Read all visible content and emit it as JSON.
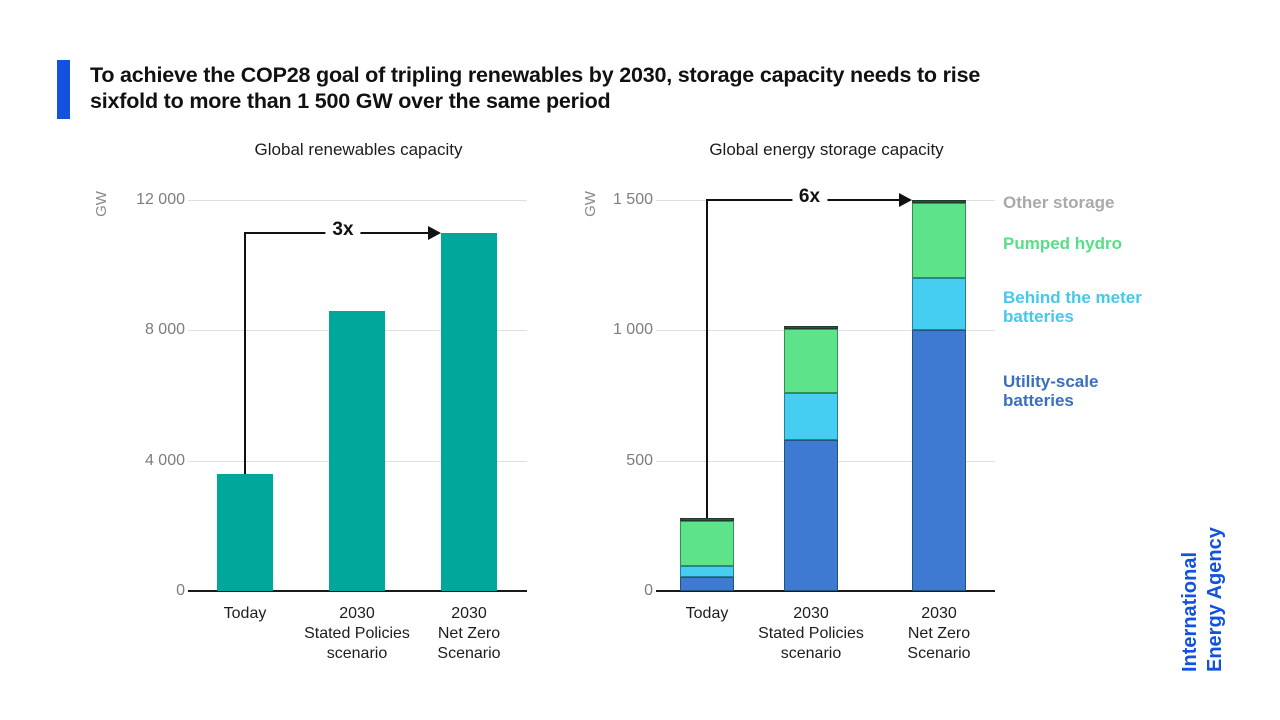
{
  "header": {
    "title_line1": "To achieve the COP28 goal of tripling renewables by 2030, storage capacity needs to rise",
    "title_line2": "sixfold to more than 1 500 GW over the same period",
    "accent_color": "#1352e0"
  },
  "chart_data": [
    {
      "type": "bar",
      "title": "Global renewables capacity",
      "ylabel": "GW",
      "xlabel": "",
      "categories": [
        "Today",
        "2030 Stated Policies scenario",
        "2030 Net Zero Scenario"
      ],
      "category_lines": [
        [
          "Today"
        ],
        [
          "2030",
          "Stated Policies",
          "scenario"
        ],
        [
          "2030",
          "Net Zero",
          "Scenario"
        ]
      ],
      "values": [
        3600,
        8600,
        11000
      ],
      "bar_color": "#00a79b",
      "ylim": [
        0,
        12000
      ],
      "yticks": [
        0,
        4000,
        8000,
        12000
      ],
      "ytick_labels": [
        "0",
        "4 000",
        "8 000",
        "12 000"
      ],
      "grid": "horizontal",
      "annotation": {
        "label": "3x",
        "from_index": 0,
        "to_index": 2
      }
    },
    {
      "type": "bar-stacked",
      "title": "Global energy storage capacity",
      "ylabel": "GW",
      "xlabel": "",
      "categories": [
        "Today",
        "2030 Stated Policies scenario",
        "2030 Net Zero Scenario"
      ],
      "category_lines": [
        [
          "Today"
        ],
        [
          "2030",
          "Stated Policies",
          "scenario"
        ],
        [
          "2030",
          "Net Zero",
          "Scenario"
        ]
      ],
      "series": [
        {
          "name": "Utility-scale batteries",
          "color": "#3e79d2",
          "values": [
            55,
            580,
            1000
          ]
        },
        {
          "name": "Behind the meter batteries",
          "color": "#45cdf2",
          "values": [
            40,
            180,
            200
          ]
        },
        {
          "name": "Pumped hydro",
          "color": "#5de48a",
          "values": [
            175,
            245,
            290
          ]
        },
        {
          "name": "Other storage",
          "color": "#3b4a40",
          "values": [
            10,
            10,
            10
          ]
        }
      ],
      "totals": [
        280,
        1015,
        1500
      ],
      "ylim": [
        0,
        1500
      ],
      "yticks": [
        0,
        500,
        1000,
        1500
      ],
      "ytick_labels": [
        "0",
        "500",
        "1 000",
        "1 500"
      ],
      "grid": "horizontal",
      "legend_position": "right",
      "annotation": {
        "label": "6x",
        "from_index": 0,
        "to_index": 2
      }
    }
  ],
  "legend": {
    "items": [
      {
        "label": "Other storage",
        "color": "#a9a9a9"
      },
      {
        "label": "Pumped hydro",
        "color": "#57df86"
      },
      {
        "label": "Behind the meter batteries",
        "color": "#44c8ec"
      },
      {
        "label": "Utility-scale batteries",
        "color": "#3a6fbd"
      }
    ]
  },
  "logo": {
    "line1": "International",
    "line2": "Energy Agency",
    "color": "#1352e0"
  }
}
